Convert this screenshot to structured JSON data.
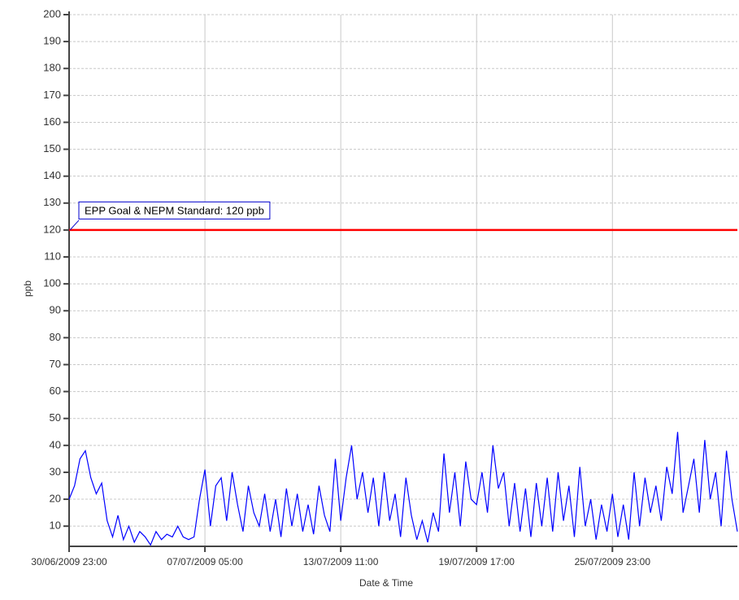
{
  "chart_data": {
    "type": "line",
    "xlabel": "Date & Time",
    "ylabel": "ppb",
    "annotation": "EPP Goal & NEPM Standard: 120 ppb",
    "reference_line": {
      "value": 120,
      "color": "#ff0000"
    },
    "xlim": [
      "2009-06-30 23:00",
      "2009-07-31 17:00"
    ],
    "xticks": [
      {
        "value": "2009-06-30 23:00",
        "label": "30/06/2009 23:00"
      },
      {
        "value": "2009-07-07 05:00",
        "label": "07/07/2009 05:00"
      },
      {
        "value": "2009-07-13 11:00",
        "label": "13/07/2009 11:00"
      },
      {
        "value": "2009-07-19 17:00",
        "label": "19/07/2009 17:00"
      },
      {
        "value": "2009-07-25 23:00",
        "label": "25/07/2009 23:00"
      }
    ],
    "ylim": [
      2.5,
      200
    ],
    "yticks": [
      10,
      20,
      30,
      40,
      50,
      60,
      70,
      80,
      90,
      100,
      110,
      120,
      130,
      140,
      150,
      160,
      170,
      180,
      190,
      200
    ],
    "grid": true,
    "x": [
      "2009-06-30 23:00",
      "2009-07-01 05:00",
      "2009-07-01 11:00",
      "2009-07-01 17:00",
      "2009-07-01 23:00",
      "2009-07-02 05:00",
      "2009-07-02 11:00",
      "2009-07-02 17:00",
      "2009-07-02 23:00",
      "2009-07-03 05:00",
      "2009-07-03 11:00",
      "2009-07-03 17:00",
      "2009-07-03 23:00",
      "2009-07-04 05:00",
      "2009-07-04 11:00",
      "2009-07-04 17:00",
      "2009-07-04 23:00",
      "2009-07-05 05:00",
      "2009-07-05 11:00",
      "2009-07-05 17:00",
      "2009-07-05 23:00",
      "2009-07-06 05:00",
      "2009-07-06 11:00",
      "2009-07-06 17:00",
      "2009-07-06 23:00",
      "2009-07-07 05:00",
      "2009-07-07 11:00",
      "2009-07-07 17:00",
      "2009-07-07 23:00",
      "2009-07-08 05:00",
      "2009-07-08 11:00",
      "2009-07-08 17:00",
      "2009-07-08 23:00",
      "2009-07-09 05:00",
      "2009-07-09 11:00",
      "2009-07-09 17:00",
      "2009-07-09 23:00",
      "2009-07-10 05:00",
      "2009-07-10 11:00",
      "2009-07-10 17:00",
      "2009-07-10 23:00",
      "2009-07-11 05:00",
      "2009-07-11 11:00",
      "2009-07-11 17:00",
      "2009-07-11 23:00",
      "2009-07-12 05:00",
      "2009-07-12 11:00",
      "2009-07-12 17:00",
      "2009-07-12 23:00",
      "2009-07-13 05:00",
      "2009-07-13 11:00",
      "2009-07-13 17:00",
      "2009-07-13 23:00",
      "2009-07-14 05:00",
      "2009-07-14 11:00",
      "2009-07-14 17:00",
      "2009-07-14 23:00",
      "2009-07-15 05:00",
      "2009-07-15 11:00",
      "2009-07-15 17:00",
      "2009-07-15 23:00",
      "2009-07-16 05:00",
      "2009-07-16 11:00",
      "2009-07-16 17:00",
      "2009-07-16 23:00",
      "2009-07-17 05:00",
      "2009-07-17 11:00",
      "2009-07-17 17:00",
      "2009-07-17 23:00",
      "2009-07-18 05:00",
      "2009-07-18 11:00",
      "2009-07-18 17:00",
      "2009-07-18 23:00",
      "2009-07-19 05:00",
      "2009-07-19 11:00",
      "2009-07-19 17:00",
      "2009-07-19 23:00",
      "2009-07-20 05:00",
      "2009-07-20 11:00",
      "2009-07-20 17:00",
      "2009-07-20 23:00",
      "2009-07-21 05:00",
      "2009-07-21 11:00",
      "2009-07-21 17:00",
      "2009-07-21 23:00",
      "2009-07-22 05:00",
      "2009-07-22 11:00",
      "2009-07-22 17:00",
      "2009-07-22 23:00",
      "2009-07-23 05:00",
      "2009-07-23 11:00",
      "2009-07-23 17:00",
      "2009-07-23 23:00",
      "2009-07-24 05:00",
      "2009-07-24 11:00",
      "2009-07-24 17:00",
      "2009-07-24 23:00",
      "2009-07-25 05:00",
      "2009-07-25 11:00",
      "2009-07-25 17:00",
      "2009-07-25 23:00",
      "2009-07-26 05:00",
      "2009-07-26 11:00",
      "2009-07-26 17:00",
      "2009-07-26 23:00",
      "2009-07-27 05:00",
      "2009-07-27 11:00",
      "2009-07-27 17:00",
      "2009-07-27 23:00",
      "2009-07-28 05:00",
      "2009-07-28 11:00",
      "2009-07-28 17:00",
      "2009-07-28 23:00",
      "2009-07-29 05:00",
      "2009-07-29 11:00",
      "2009-07-29 17:00",
      "2009-07-29 23:00",
      "2009-07-30 05:00",
      "2009-07-30 11:00",
      "2009-07-30 17:00",
      "2009-07-30 23:00",
      "2009-07-31 05:00",
      "2009-07-31 11:00",
      "2009-07-31 17:00"
    ],
    "series": [
      {
        "name": "ppb",
        "color": "#0000ff",
        "values": [
          20,
          25,
          35,
          38,
          28,
          22,
          26,
          12,
          6,
          14,
          5,
          10,
          4,
          8,
          6,
          3,
          8,
          5,
          7,
          6,
          10,
          6,
          5,
          6,
          20,
          31,
          10,
          25,
          28,
          12,
          30,
          18,
          8,
          25,
          15,
          10,
          22,
          8,
          20,
          6,
          24,
          10,
          22,
          8,
          18,
          7,
          25,
          14,
          8,
          35,
          12,
          28,
          40,
          20,
          30,
          15,
          28,
          10,
          30,
          12,
          22,
          6,
          28,
          14,
          5,
          12,
          4,
          15,
          8,
          37,
          15,
          30,
          10,
          34,
          20,
          18,
          30,
          15,
          40,
          24,
          30,
          10,
          26,
          8,
          24,
          6,
          26,
          10,
          28,
          8,
          30,
          12,
          25,
          6,
          32,
          10,
          20,
          5,
          18,
          8,
          22,
          6,
          18,
          5,
          30,
          10,
          28,
          15,
          25,
          12,
          32,
          22,
          45,
          15,
          25,
          35,
          15,
          42,
          20,
          30,
          10,
          38,
          20,
          8
        ]
      }
    ]
  }
}
